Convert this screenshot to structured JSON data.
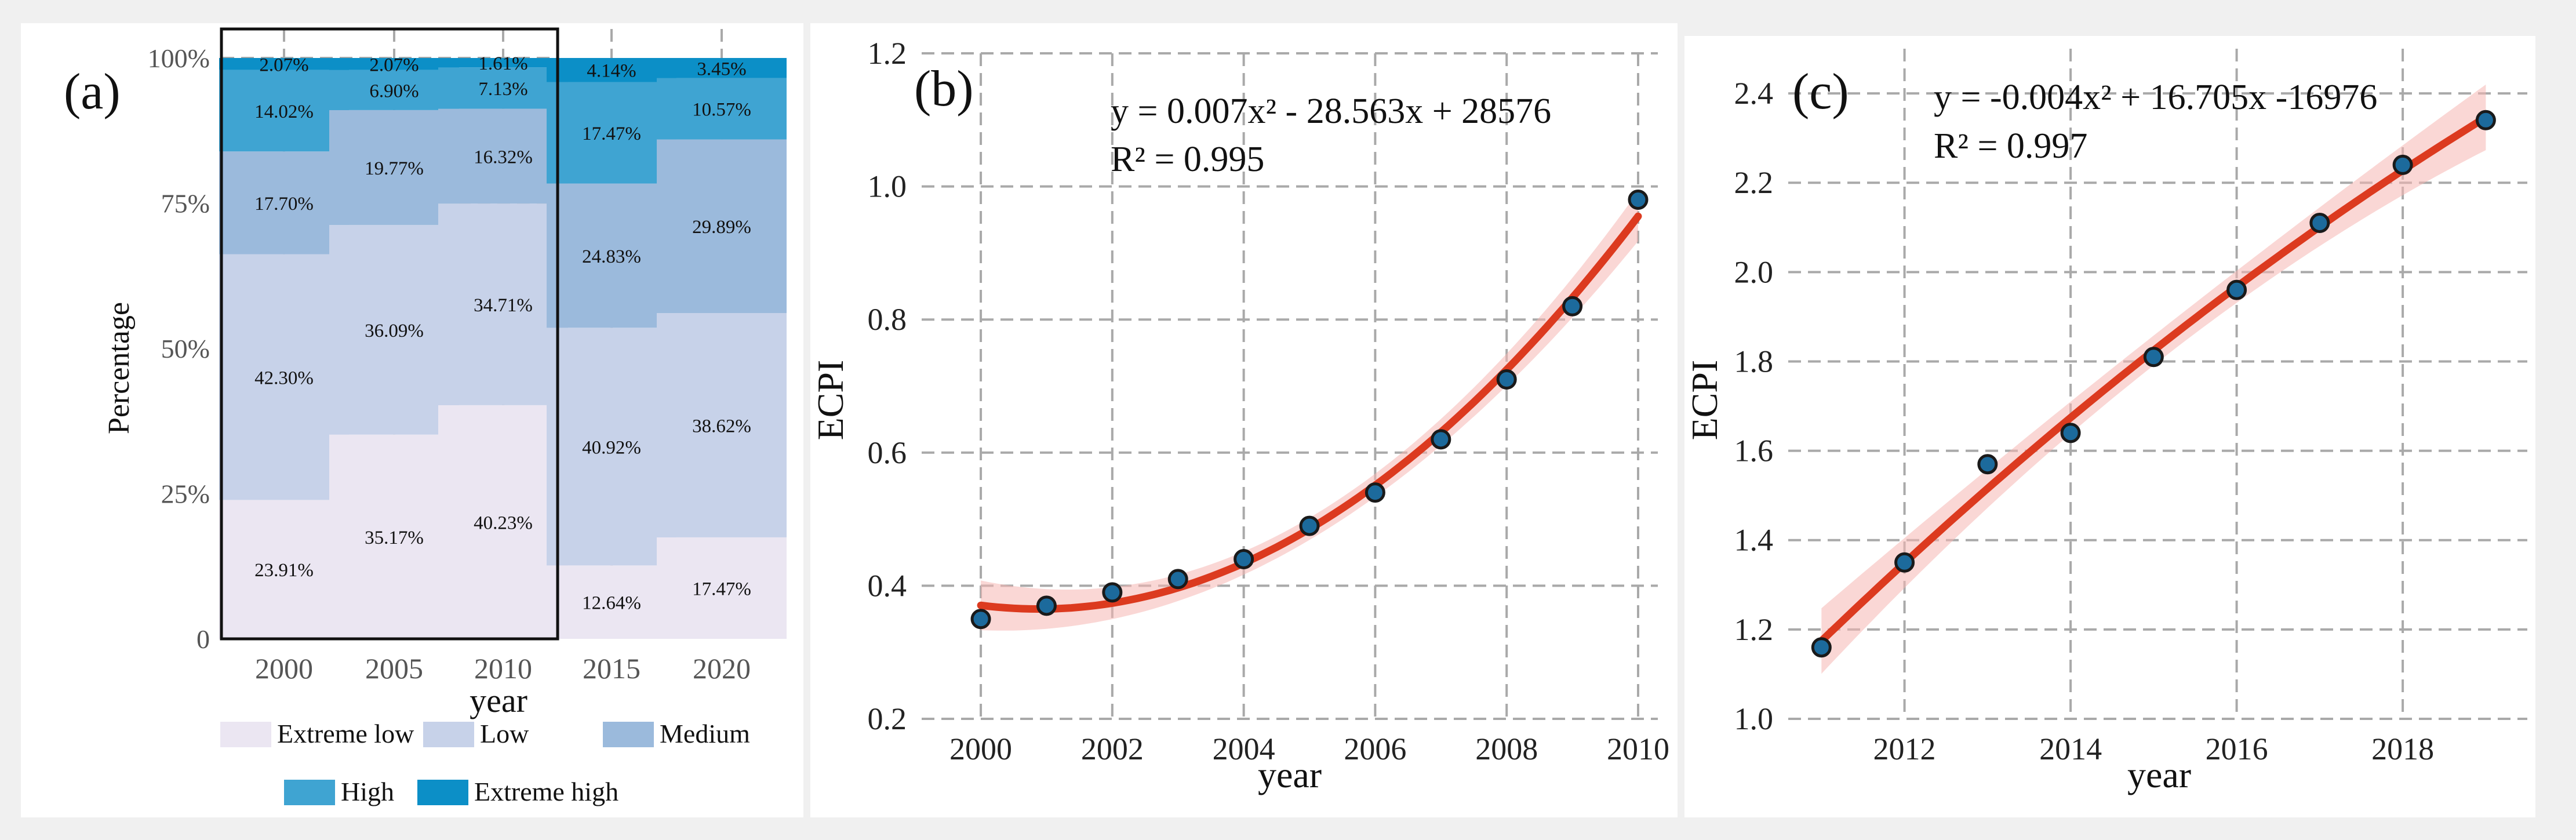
{
  "chart_data": [
    {
      "panel": "(a)",
      "type": "bar",
      "stacked": true,
      "categories": [
        "2000",
        "2005",
        "2010",
        "2015",
        "2020"
      ],
      "series": [
        {
          "name": "Extreme low",
          "color": "#ebe6f2",
          "values": [
            23.91,
            35.17,
            40.23,
            12.64,
            17.47
          ],
          "labels": [
            "23.91%",
            "35.17%",
            "40.23%",
            "12.64%",
            "17.47%"
          ]
        },
        {
          "name": "Low",
          "color": "#c7d2e9",
          "values": [
            42.3,
            36.09,
            34.71,
            40.92,
            38.62
          ],
          "labels": [
            "42.30%",
            "36.09%",
            "34.71%",
            "40.92%",
            "38.62%"
          ]
        },
        {
          "name": "Medium",
          "color": "#9bbadc",
          "values": [
            17.7,
            19.77,
            16.32,
            24.83,
            29.89
          ],
          "labels": [
            "17.70%",
            "19.77%",
            "16.32%",
            "24.83%",
            "29.89%"
          ]
        },
        {
          "name": "High",
          "color": "#3fa4d2",
          "values": [
            14.02,
            6.9,
            7.13,
            17.47,
            10.57
          ],
          "labels": [
            "14.02%",
            "6.90%",
            "7.13%",
            "17.47%",
            "10.57%"
          ]
        },
        {
          "name": "Extreme high",
          "color": "#0c8fc7",
          "values": [
            2.07,
            2.07,
            1.61,
            4.14,
            3.45
          ],
          "labels": [
            "2.07%",
            "2.07%",
            "1.61%",
            "4.14%",
            "3.45%"
          ]
        }
      ],
      "ylim": [
        0,
        100
      ],
      "yticks": [
        0,
        25,
        50,
        75,
        100
      ],
      "ytick_labels": [
        "0",
        "25%",
        "50%",
        "75%",
        "100%"
      ],
      "xlabel": "year",
      "ylabel": "Percentage",
      "grid": true,
      "legend": "bottom"
    },
    {
      "panel": "(b)",
      "type": "scatter",
      "x": [
        2000,
        2001,
        2002,
        2003,
        2004,
        2005,
        2006,
        2007,
        2008,
        2009,
        2010
      ],
      "y": [
        0.35,
        0.37,
        0.39,
        0.41,
        0.44,
        0.49,
        0.54,
        0.62,
        0.71,
        0.82,
        0.98
      ],
      "fit": {
        "type": "quadratic",
        "equation": "y = 0.007x² - 28.563x + 28576",
        "r2": "R² = 0.995",
        "line_color": "#dc3a1f"
      },
      "xlim": [
        1999.1,
        2010.3
      ],
      "xticks": [
        2000,
        2002,
        2004,
        2006,
        2008,
        2010
      ],
      "ylim": [
        0.2,
        1.2
      ],
      "yticks": [
        0.2,
        0.4,
        0.6,
        0.8,
        1.0,
        1.2
      ],
      "ytick_labels": [
        "0.2",
        "0.4",
        "0.6",
        "0.8",
        "1.0",
        "1.2"
      ],
      "xlabel": "year",
      "ylabel": "ECPI",
      "grid": true
    },
    {
      "panel": "(c)",
      "type": "scatter",
      "x": [
        2011,
        2012,
        2013,
        2014,
        2015,
        2016,
        2017,
        2018,
        2019
      ],
      "y": [
        1.16,
        1.35,
        1.57,
        1.64,
        1.81,
        1.96,
        2.11,
        2.24,
        2.34
      ],
      "fit": {
        "type": "quadratic",
        "equation": "y = -0.004x² + 16.705x -16976",
        "r2": "R² = 0.997",
        "line_color": "#dc3a1f"
      },
      "xlim": [
        2010.6,
        2019.5
      ],
      "xticks": [
        2012,
        2014,
        2016,
        2018
      ],
      "ylim": [
        1.0,
        2.5
      ],
      "yticks": [
        1.0,
        1.2,
        1.4,
        1.6,
        1.8,
        2.0,
        2.2,
        2.4
      ],
      "ytick_labels": [
        "1.0",
        "1.2",
        "1.4",
        "1.6",
        "1.8",
        "2.0",
        "2.2",
        "2.4"
      ],
      "xlabel": "year",
      "ylabel": "ECPI",
      "grid": true
    }
  ]
}
